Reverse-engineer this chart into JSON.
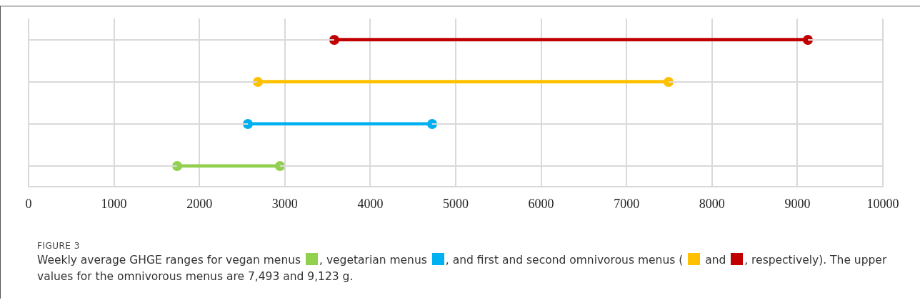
{
  "chart_data": {
    "type": "bar",
    "orientation": "horizontal",
    "categories": [
      null,
      null,
      null,
      null
    ],
    "base": [
      3580,
      2680,
      2570,
      1740
    ],
    "values": [
      5540,
      4810,
      2150,
      1200
    ],
    "colors": [
      "#c00000",
      "#ffc000",
      "#00b0f0",
      "#92d050"
    ],
    "xlim": [
      0,
      10000
    ],
    "xticks": [
      0,
      1000,
      2000,
      3000,
      4000,
      5000,
      6000,
      7000,
      8000,
      9000,
      10000
    ],
    "grid": true,
    "marker": "circle",
    "annotations": [
      "FIGURE 3",
      "Weekly average GHGE ranges for vegan menus",
      ", vegetarian menus",
      ", and first and second omnivorous menus (",
      "and",
      ", respectively). The upper values for the omnivorous menus are 7,493 and 9,123 g."
    ]
  }
}
